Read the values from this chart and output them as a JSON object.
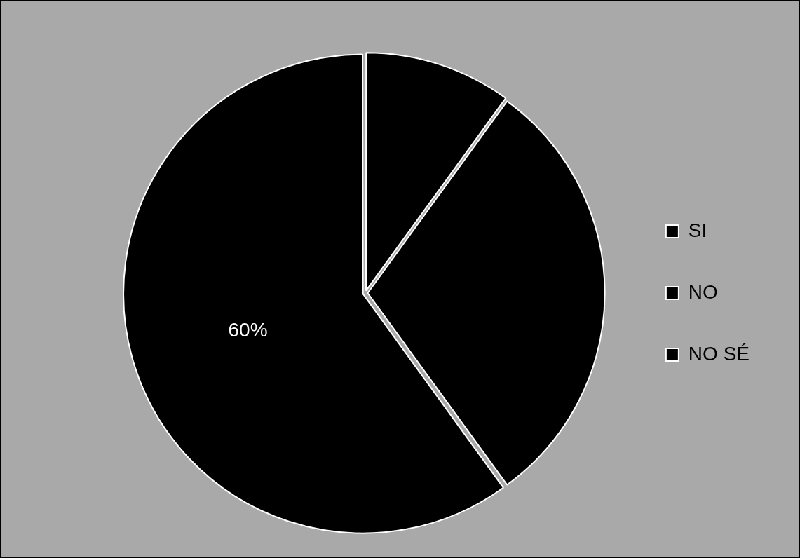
{
  "chart_data": {
    "type": "pie",
    "categories": [
      "SI",
      "NO",
      "NO SÉ"
    ],
    "values": [
      10,
      30,
      60
    ],
    "colors": [
      "#000000",
      "#000000",
      "#000000"
    ],
    "value_labels": [
      null,
      null,
      "60%"
    ],
    "legend": "right"
  }
}
